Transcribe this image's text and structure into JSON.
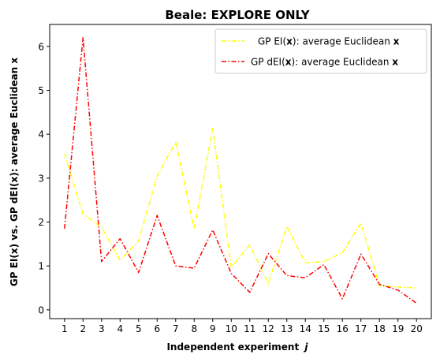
{
  "chart_data": {
    "type": "line",
    "title": "Beale: EXPLORE ONLY",
    "xlabel": "Independent experiment",
    "xlabel_var": "j",
    "ylabel": "GP EI(x) vs. GP dEI(x): average Euclidean x",
    "x": [
      1,
      2,
      3,
      4,
      5,
      6,
      7,
      8,
      9,
      10,
      11,
      12,
      13,
      14,
      15,
      16,
      17,
      18,
      19,
      20
    ],
    "xlim": [
      0.2,
      20.8
    ],
    "ylim": [
      -0.2,
      6.5
    ],
    "yticks": [
      0,
      1,
      2,
      3,
      4,
      5,
      6
    ],
    "grid": false,
    "legend_position": "top-right",
    "series": [
      {
        "name_prefix": "GP EI(",
        "name_bold": "x",
        "name_middle": "): average Euclidean ",
        "name_suffix_bold": "x",
        "color": "#ffff00",
        "linestyle": "dashdot",
        "values": [
          3.55,
          2.18,
          1.88,
          1.13,
          1.57,
          3.05,
          3.82,
          1.85,
          4.13,
          0.97,
          1.48,
          0.6,
          1.9,
          1.07,
          1.1,
          1.3,
          1.98,
          0.55,
          0.52,
          0.5
        ]
      },
      {
        "name_prefix": "GP dEI(",
        "name_bold": "x",
        "name_middle": "): average Euclidean ",
        "name_suffix_bold": "x",
        "color": "#ff0000",
        "linestyle": "dashdot",
        "values": [
          1.85,
          6.2,
          1.1,
          1.62,
          0.85,
          2.15,
          1.0,
          0.95,
          1.82,
          0.83,
          0.4,
          1.28,
          0.78,
          0.73,
          1.03,
          0.25,
          1.27,
          0.58,
          0.45,
          0.15
        ]
      }
    ]
  }
}
